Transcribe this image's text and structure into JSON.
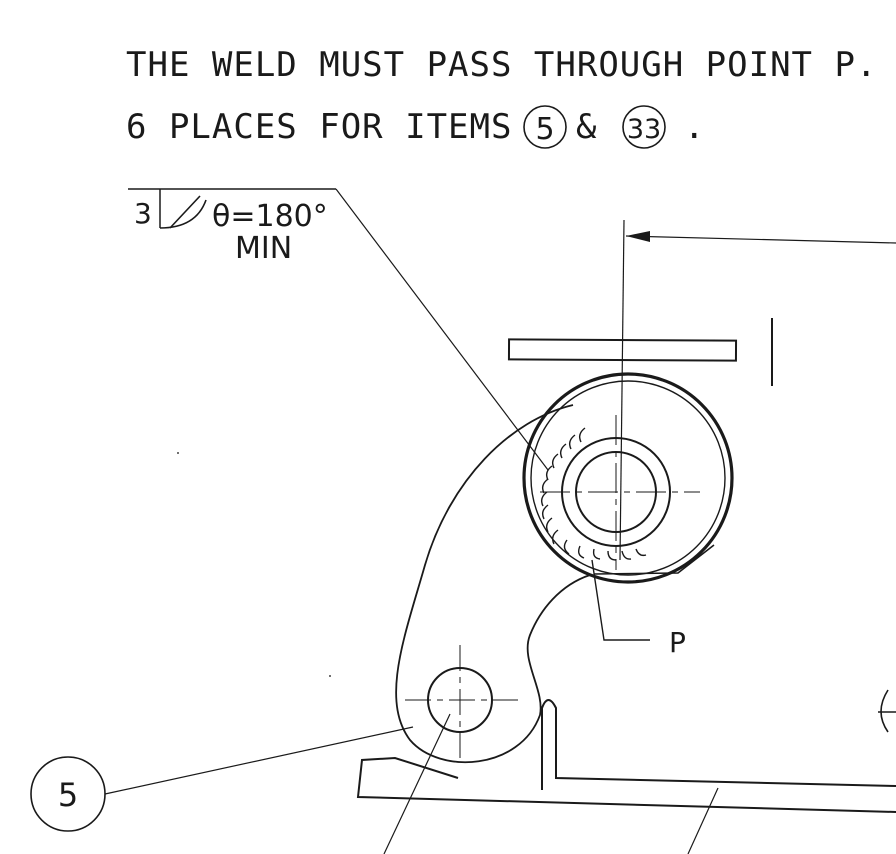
{
  "notes": {
    "line1": "THE WELD MUST PASS THROUGH POINT P.",
    "line2_prefix": "6 PLACES FOR ITEMS",
    "line2_item_a": "5",
    "line2_join": "&",
    "line2_item_b": "33",
    "line2_end": "."
  },
  "weld_symbol": {
    "size": "3",
    "angle_text": "θ=180°",
    "min_text": "MIN"
  },
  "point_label": "P",
  "balloon_label": "5"
}
